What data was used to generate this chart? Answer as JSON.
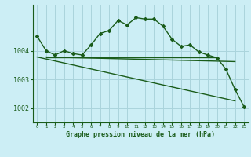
{
  "bg_color": "#cceef5",
  "line_color": "#1a5c1a",
  "grid_color": "#aad4dc",
  "xlabel": "Graphe pression niveau de la mer (hPa)",
  "ylabel_ticks": [
    1002,
    1003,
    1004
  ],
  "xlim": [
    -0.5,
    23.5
  ],
  "ylim": [
    1001.5,
    1005.6
  ],
  "hours": [
    0,
    1,
    2,
    3,
    4,
    5,
    6,
    7,
    8,
    9,
    10,
    11,
    12,
    13,
    14,
    15,
    16,
    17,
    18,
    19,
    20,
    21,
    22,
    23
  ],
  "pressure": [
    1004.5,
    1004.0,
    1003.85,
    1004.0,
    1003.9,
    1003.85,
    1004.2,
    1004.6,
    1004.7,
    1005.05,
    1004.9,
    1005.15,
    1005.1,
    1005.1,
    1004.85,
    1004.4,
    1004.15,
    1004.2,
    1003.95,
    1003.85,
    1003.75,
    1003.35,
    1002.65,
    1002.05
  ],
  "line1_x": [
    1,
    20
  ],
  "line1_y": [
    1003.78,
    1003.78
  ],
  "line2_x": [
    1,
    22
  ],
  "line2_y": [
    1003.78,
    1003.62
  ],
  "line3_x": [
    0,
    22
  ],
  "line3_y": [
    1003.78,
    1002.25
  ],
  "tick_labels": [
    "0",
    "1",
    "2",
    "3",
    "4",
    "5",
    "6",
    "7",
    "8",
    "9",
    "10",
    "11",
    "12",
    "13",
    "14",
    "15",
    "16",
    "17",
    "18",
    "19",
    "20",
    "21",
    "22",
    "23"
  ]
}
